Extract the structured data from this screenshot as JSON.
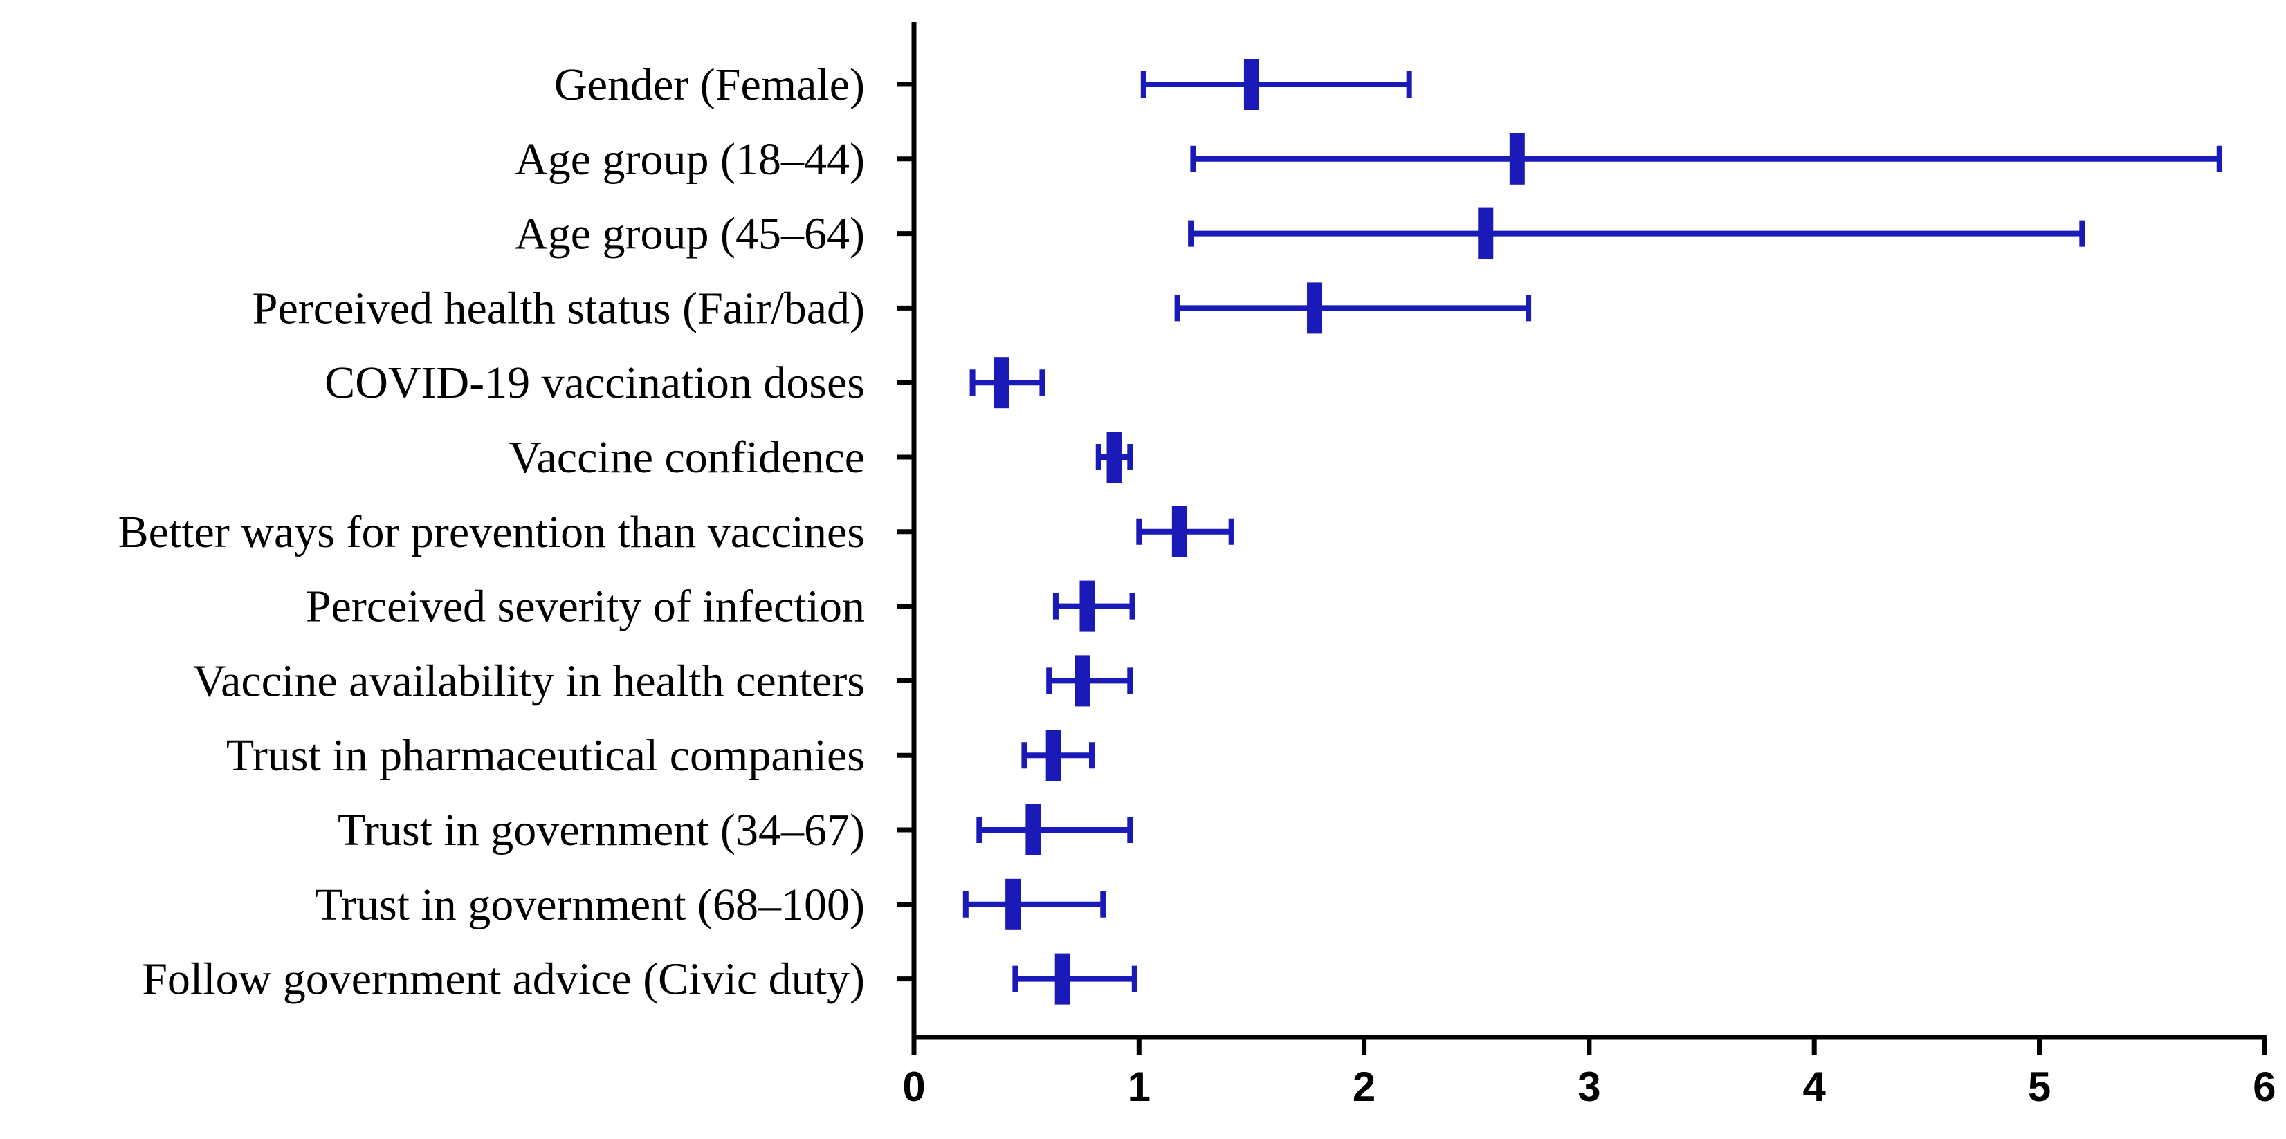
{
  "chart_data": {
    "type": "forest",
    "title": "",
    "xlabel": "",
    "ylabel": "",
    "xlim": [
      0,
      6
    ],
    "x_ticks": [
      "0",
      "1",
      "2",
      "3",
      "4",
      "5",
      "6"
    ],
    "colors": {
      "series": "#1a1ab8",
      "axis": "#000000"
    },
    "categories": [
      "Gender (Female)",
      "Age group (18–44)",
      "Age group (45–64)",
      "Perceived health status (Fair/bad)",
      "COVID-19 vaccination doses",
      "Vaccine confidence",
      "Better ways for prevention than vaccines",
      "Perceived severity of infection",
      "Vaccine availability in health centers",
      "Trust in pharmaceutical companies",
      "Trust in government (34–67)",
      "Trust in government (68–100)",
      "Follow government advice (Civic duty)"
    ],
    "estimates": [
      1.5,
      2.68,
      2.54,
      1.78,
      0.39,
      0.89,
      1.18,
      0.77,
      0.75,
      0.62,
      0.53,
      0.44,
      0.66
    ],
    "lower": [
      1.02,
      1.24,
      1.23,
      1.17,
      0.26,
      0.82,
      1.0,
      0.63,
      0.6,
      0.49,
      0.29,
      0.23,
      0.45
    ],
    "upper": [
      2.2,
      5.8,
      5.19,
      2.73,
      0.57,
      0.96,
      1.41,
      0.97,
      0.96,
      0.79,
      0.96,
      0.84,
      0.98
    ]
  }
}
